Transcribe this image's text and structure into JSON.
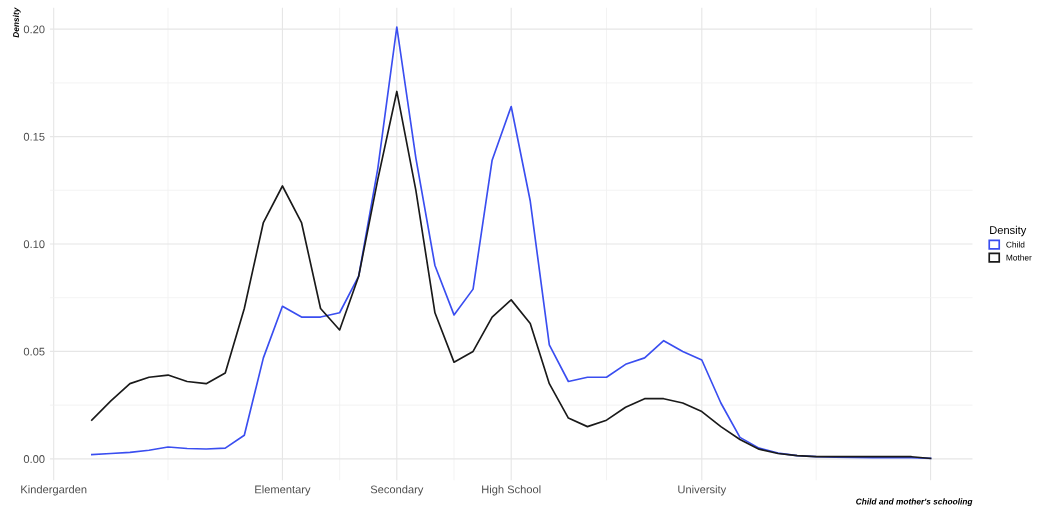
{
  "chart_data": {
    "type": "line",
    "xlabel": "Child and mother's schooling",
    "ylabel": "Density",
    "legend_title": "Density",
    "legend": "right",
    "grid": true,
    "line_style": "solid",
    "marker": "none",
    "ylim": [
      -0.01,
      0.21
    ],
    "categories": [
      "Kindergarden",
      null,
      null,
      null,
      null,
      null,
      null,
      null,
      null,
      null,
      null,
      null,
      "Elementary",
      null,
      null,
      null,
      null,
      null,
      "Secondary",
      null,
      null,
      null,
      null,
      null,
      "High School",
      null,
      null,
      null,
      null,
      null,
      null,
      null,
      null,
      null,
      "University",
      null,
      null,
      null,
      null,
      null,
      null,
      null,
      null,
      null,
      null,
      null,
      null
    ],
    "yticks": [
      {
        "value": 0,
        "label": "0.00"
      },
      {
        "value": 0.05,
        "label": "0.05"
      },
      {
        "value": 0.1,
        "label": "0.10"
      },
      {
        "value": 0.15,
        "label": "0.15"
      },
      {
        "value": 0.2,
        "label": "0.20"
      }
    ],
    "series": [
      {
        "name": "Child",
        "color": "#3a4ef0",
        "values": [
          null,
          null,
          0.002,
          0.0025,
          0.003,
          0.004,
          0.0055,
          0.0048,
          0.0046,
          0.005,
          0.011,
          0.047,
          0.071,
          0.066,
          0.066,
          0.068,
          0.085,
          0.135,
          0.201,
          0.14,
          0.09,
          0.067,
          0.079,
          0.139,
          0.164,
          0.12,
          0.053,
          0.036,
          0.038,
          0.038,
          0.044,
          0.047,
          0.055,
          0.05,
          0.046,
          0.026,
          0.01,
          0.005,
          0.0027,
          0.0015,
          0.001,
          0.0008,
          0.0007,
          0.0006,
          0.0005,
          0.0005,
          0.0002
        ]
      },
      {
        "name": "Mother",
        "color": "#1a1a1a",
        "values": [
          null,
          null,
          0.018,
          0.027,
          0.035,
          0.038,
          0.039,
          0.036,
          0.035,
          0.04,
          0.07,
          0.11,
          0.127,
          0.11,
          0.07,
          0.06,
          0.085,
          0.13,
          0.171,
          0.125,
          0.068,
          0.045,
          0.05,
          0.066,
          0.074,
          0.063,
          0.035,
          0.019,
          0.015,
          0.018,
          0.024,
          0.028,
          0.028,
          0.026,
          0.022,
          0.015,
          0.009,
          0.0045,
          0.0025,
          0.0015,
          0.001,
          0.001,
          0.001,
          0.001,
          0.001,
          0.001,
          0.0002
        ]
      }
    ]
  }
}
